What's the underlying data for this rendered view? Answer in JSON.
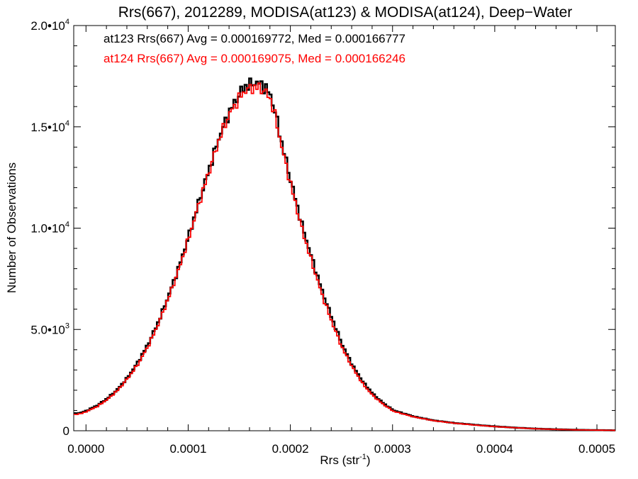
{
  "chart_data": {
    "type": "histogram-step",
    "title": "Rrs(667), 2012289, MODISA(at123) & MODISA(at124), Deep−Water",
    "xlabel": "Rrs (str",
    "xlabel_sup": "-1",
    "xlabel_end": ")",
    "ylabel": "Number of Observations",
    "xlim": [
      -1.2e-05,
      0.000518
    ],
    "ylim": [
      0,
      20000
    ],
    "x_ticks": [
      {
        "value": 0.0,
        "label": "0.0000"
      },
      {
        "value": 0.0001,
        "label": "0.0001"
      },
      {
        "value": 0.0002,
        "label": "0.0002"
      },
      {
        "value": 0.0003,
        "label": "0.0003"
      },
      {
        "value": 0.0004,
        "label": "0.0004"
      },
      {
        "value": 0.0005,
        "label": "0.0005"
      }
    ],
    "y_ticks": [
      {
        "value": 0,
        "label": "0",
        "sup": ""
      },
      {
        "value": 5000,
        "label": "5.0•10",
        "sup": "3"
      },
      {
        "value": 10000,
        "label": "1.0•10",
        "sup": "4"
      },
      {
        "value": 15000,
        "label": "1.5•10",
        "sup": "4"
      },
      {
        "value": 20000,
        "label": "2.0•10",
        "sup": "4"
      }
    ],
    "annotations": [
      {
        "text": "at123 Rrs(667) Avg = 0.000169772, Med = 0.000166777",
        "color": "#000000"
      },
      {
        "text": "at124 Rrs(667) Avg = 0.000169075, Med = 0.000166246",
        "color": "#ff0000"
      }
    ],
    "series": [
      {
        "color": "#000000",
        "x": [
          -1.2e-05,
          -5e-06,
          0.0,
          1e-05,
          2e-05,
          3e-05,
          4e-05,
          5e-05,
          6e-05,
          7e-05,
          8e-05,
          9e-05,
          0.0001,
          0.00011,
          0.00012,
          0.00013,
          0.00014,
          0.00015,
          0.000155,
          0.00016,
          0.000165,
          0.00017,
          0.000175,
          0.00018,
          0.000185,
          0.00019,
          0.0002,
          0.00021,
          0.00022,
          0.00023,
          0.00024,
          0.00025,
          0.00026,
          0.00027,
          0.00028,
          0.00029,
          0.0003,
          0.00032,
          0.00034,
          0.00036,
          0.00038,
          0.0004,
          0.00042,
          0.00044,
          0.00046,
          0.00048,
          0.0005,
          0.000518
        ],
        "y": [
          850,
          900,
          1000,
          1250,
          1600,
          2050,
          2650,
          3400,
          4300,
          5400,
          6700,
          8100,
          9700,
          11400,
          13000,
          14600,
          15800,
          16700,
          17000,
          17100,
          17200,
          17100,
          16900,
          16500,
          15500,
          14300,
          12200,
          10200,
          8500,
          6900,
          5500,
          4200,
          3200,
          2400,
          1800,
          1350,
          1000,
          700,
          500,
          380,
          290,
          210,
          150,
          100,
          70,
          45,
          30,
          20
        ]
      },
      {
        "color": "#ff0000",
        "x": [
          -1.2e-05,
          -5e-06,
          0.0,
          1e-05,
          2e-05,
          3e-05,
          4e-05,
          5e-05,
          6e-05,
          7e-05,
          8e-05,
          9e-05,
          0.0001,
          0.00011,
          0.00012,
          0.00013,
          0.00014,
          0.00015,
          0.000155,
          0.00016,
          0.000165,
          0.00017,
          0.000175,
          0.00018,
          0.000185,
          0.00019,
          0.0002,
          0.00021,
          0.00022,
          0.00023,
          0.00024,
          0.00025,
          0.00026,
          0.00027,
          0.00028,
          0.00029,
          0.0003,
          0.00032,
          0.00034,
          0.00036,
          0.00038,
          0.0004,
          0.00042,
          0.00044,
          0.00046,
          0.00048,
          0.0005,
          0.000518
        ],
        "y": [
          800,
          860,
          960,
          1200,
          1550,
          2000,
          2600,
          3300,
          4200,
          5300,
          6600,
          8000,
          9600,
          11300,
          12900,
          14500,
          15700,
          16500,
          16800,
          16900,
          16950,
          16900,
          16700,
          16300,
          15300,
          14100,
          12000,
          10000,
          8300,
          6700,
          5300,
          4050,
          3100,
          2300,
          1720,
          1300,
          960,
          680,
          490,
          370,
          280,
          200,
          145,
          95,
          65,
          42,
          28,
          18
        ]
      }
    ]
  }
}
